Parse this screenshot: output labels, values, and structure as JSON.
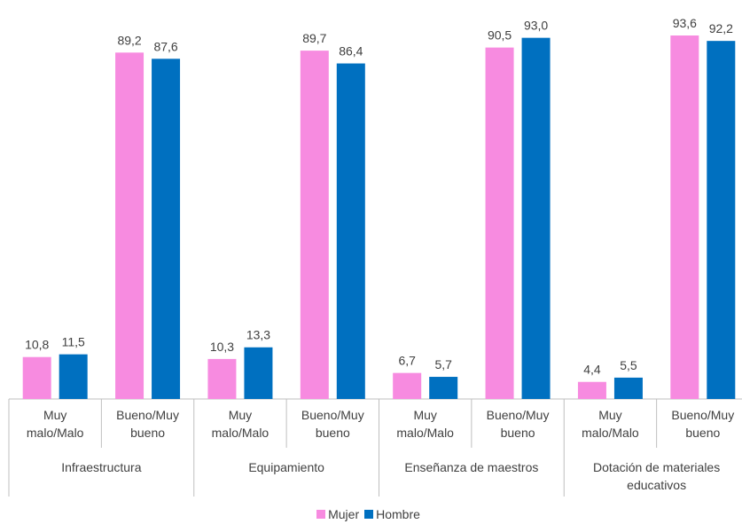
{
  "chart_data": {
    "type": "grouped-bar",
    "groups": [
      {
        "label": "Infraestructura",
        "categories": [
          "Muy malo/Malo",
          "Bueno/Muy bueno"
        ]
      },
      {
        "label": "Equipamiento",
        "categories": [
          "Muy malo/Malo",
          "Bueno/Muy bueno"
        ]
      },
      {
        "label": "Enseñanza de maestros",
        "categories": [
          "Muy malo/Malo",
          "Bueno/Muy bueno"
        ]
      },
      {
        "label": "Dotación de materiales educativos",
        "categories": [
          "Muy malo/Malo",
          "Bueno/Muy bueno"
        ]
      }
    ],
    "series": [
      {
        "name": "Mujer",
        "color": "#f78be0",
        "values": [
          10.8,
          89.2,
          10.3,
          89.7,
          6.7,
          90.5,
          4.4,
          93.6
        ],
        "value_labels": [
          "10,8",
          "89,2",
          "10,3",
          "89,7",
          "6,7",
          "90,5",
          "4,4",
          "93,6"
        ]
      },
      {
        "name": "Hombre",
        "color": "#0070c0",
        "values": [
          11.5,
          87.6,
          13.3,
          86.4,
          5.7,
          93.0,
          5.5,
          92.2
        ],
        "value_labels": [
          "11,5",
          "87,6",
          "13,3",
          "86,4",
          "5,7",
          "93,0",
          "5,5",
          "92,2"
        ]
      }
    ],
    "ylim": [
      0,
      100
    ],
    "legend": "bottom"
  }
}
